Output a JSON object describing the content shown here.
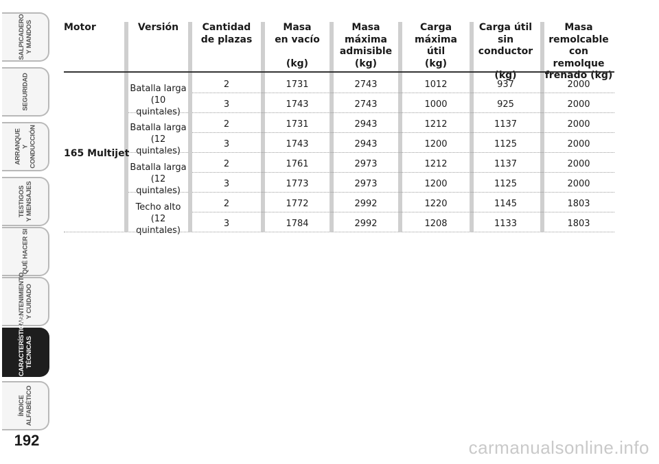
{
  "sidebar": {
    "tabs": [
      {
        "label": "SALPICADERO\nY MANDOS",
        "active": false
      },
      {
        "label": "SEGURIDAD",
        "active": false
      },
      {
        "label": "ARRANQUE\nY CONDUCCIÓN",
        "active": false
      },
      {
        "label": "TESTIGOS\nY MENSAJES",
        "active": false
      },
      {
        "label": "QUÉ HACER SI",
        "active": false
      },
      {
        "label": "MANTENIMIENTO\nY CUIDADO",
        "active": false
      },
      {
        "label": "CARACTERÍSTICAS\nTÉCNICAS",
        "active": true
      },
      {
        "label": "ÍNDICE\nALFABÉTICO",
        "active": false
      }
    ]
  },
  "page_number": "192",
  "table": {
    "headers": [
      "Motor",
      "Versión",
      "Cantidad\nde plazas",
      "Masa\nen vacío\n\n(kg)",
      "Masa\nmáxima\nadmisible\n(kg)",
      "Carga\nmáxima\nútil\n(kg)",
      "Carga útil sin\nconductor\n\n(kg)",
      "Masa\nremolcable\ncon remolque\nfrenado (kg)"
    ],
    "motor": "165 Multijet",
    "versions": [
      "Batalla larga\n(10 quintales)",
      "Batalla larga\n(12 quintales)",
      "Batalla larga\n(12 quintales)",
      "Techo alto\n(12 quintales)"
    ],
    "rows": [
      [
        "2",
        "1731",
        "2743",
        "1012",
        "937",
        "2000"
      ],
      [
        "3",
        "1743",
        "2743",
        "1000",
        "925",
        "2000"
      ],
      [
        "2",
        "1731",
        "2943",
        "1212",
        "1137",
        "2000"
      ],
      [
        "3",
        "1743",
        "2943",
        "1200",
        "1125",
        "2000"
      ],
      [
        "2",
        "1761",
        "2973",
        "1212",
        "1137",
        "2000"
      ],
      [
        "3",
        "1773",
        "2973",
        "1200",
        "1125",
        "2000"
      ],
      [
        "2",
        "1772",
        "2992",
        "1220",
        "1145",
        "1803"
      ],
      [
        "3",
        "1784",
        "2992",
        "1208",
        "1133",
        "1803"
      ]
    ]
  },
  "watermark": "carmanualsonline.info",
  "colors": {
    "active_tab": "#1e1e1e",
    "tab_border": "#b8b8b8",
    "separator": "#cfcfcf"
  }
}
